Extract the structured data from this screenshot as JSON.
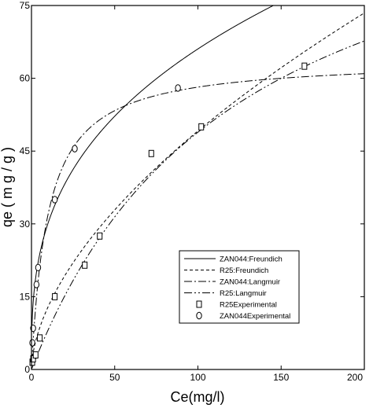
{
  "chart_data": {
    "type": "scatter",
    "xlabel": "Ce(mg/l)",
    "ylabel": "qe  ( m g / g )",
    "xlim": [
      0,
      200
    ],
    "ylim": [
      0,
      75
    ],
    "x_ticks": [
      0,
      50,
      100,
      150,
      200
    ],
    "y_ticks": [
      0,
      15,
      30,
      45,
      60,
      75
    ],
    "grid": false,
    "legend_position": "bottom-right",
    "legend": [
      {
        "label": "ZAN044:Freundich",
        "style": "solid"
      },
      {
        "label": "R25:Freundich",
        "style": "dashed"
      },
      {
        "label": "ZAN044:Langmuir",
        "style": "dashdot"
      },
      {
        "label": "R25:Langmuir",
        "style": "dashdotdot"
      },
      {
        "label": "R25Experimental",
        "marker": "square"
      },
      {
        "label": "ZAN044Experimental",
        "marker": "circle"
      }
    ],
    "fits": {
      "zan044_freundlich": {
        "kf": 13.8,
        "inv_n": 0.34
      },
      "r25_freundlich": {
        "kf": 3.4,
        "inv_n": 0.58
      },
      "zan044_langmuir": {
        "qmax": 64.0,
        "kl": 0.1
      },
      "r25_langmuir": {
        "qmax": 110.0,
        "kl": 0.008
      }
    },
    "series": [
      {
        "name": "R25Experimental",
        "marker": "square",
        "points": [
          [
            0.5,
            1.5
          ],
          [
            1.0,
            2.2
          ],
          [
            2.5,
            3.0
          ],
          [
            5.0,
            6.5
          ],
          [
            14.0,
            15.0
          ],
          [
            32.0,
            21.5
          ],
          [
            41.0,
            27.5
          ],
          [
            72.0,
            44.5
          ],
          [
            102.0,
            50.0
          ],
          [
            164.0,
            62.5
          ]
        ]
      },
      {
        "name": "ZAN044Experimental",
        "marker": "circle",
        "points": [
          [
            0.5,
            5.5
          ],
          [
            1.0,
            8.5
          ],
          [
            3.0,
            17.5
          ],
          [
            4.0,
            21.0
          ],
          [
            14.0,
            35.0
          ],
          [
            26.0,
            45.5
          ],
          [
            88.0,
            58.0
          ]
        ]
      }
    ]
  }
}
